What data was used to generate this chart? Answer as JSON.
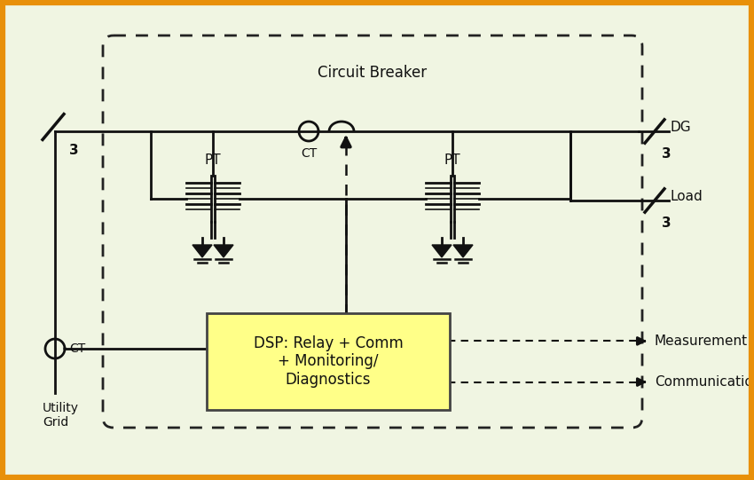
{
  "bg_color": "#f0f5e2",
  "border_color": "#e8900a",
  "line_color": "#111111",
  "dashed_color": "#222222",
  "dsp_fill": "#ffff88",
  "dsp_edge": "#444444",
  "cb_label": "Circuit Breaker",
  "ct_top_label": "CT",
  "ct_bot_label": "CT",
  "pt_left_label": "PT",
  "pt_right_label": "PT",
  "dg_label": "DG",
  "load_label": "Load",
  "three1": "3",
  "three_dg": "3",
  "three_load": "3",
  "utility_label": "Utility\nGrid",
  "dsp_label": "DSP: Relay + Comm\n+ Monitoring/\nDiagnostics",
  "meas_label": "Measurement",
  "comm_label": "Communication",
  "figsize": [
    8.5,
    5.41
  ],
  "dpi": 100
}
